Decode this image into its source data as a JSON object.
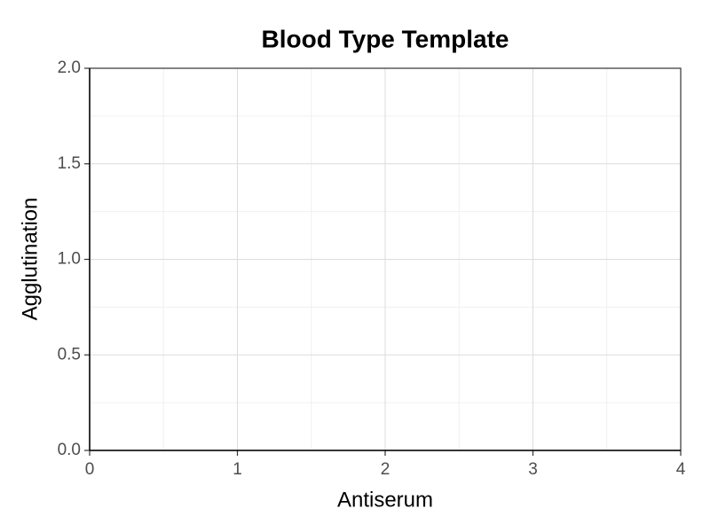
{
  "chart_data": {
    "type": "scatter",
    "title": "Blood Type Template",
    "xlabel": "Antiserum",
    "ylabel": "Agglutination",
    "xlim": [
      0,
      4
    ],
    "ylim": [
      0,
      2
    ],
    "xticks": [
      0,
      1,
      2,
      3,
      4
    ],
    "yticks": [
      {
        "value": 0,
        "label": "0.0"
      },
      {
        "value": 0.5,
        "label": "0.5"
      },
      {
        "value": 1,
        "label": "1.0"
      },
      {
        "value": 1.5,
        "label": "1.5"
      },
      {
        "value": 2,
        "label": "2.0"
      }
    ],
    "xminor": [
      0.5,
      1.5,
      2.5,
      3.5
    ],
    "yminor": [
      0.25,
      0.75,
      1.25,
      1.75
    ],
    "grid": true
  }
}
